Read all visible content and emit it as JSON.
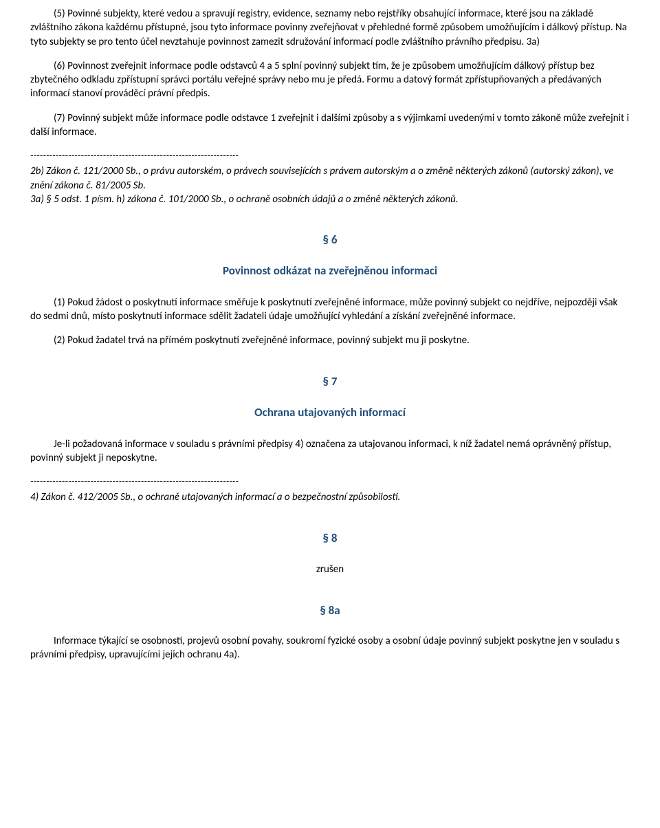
{
  "colors": {
    "heading": "#1f4e79",
    "text": "#000000",
    "background": "#ffffff"
  },
  "typography": {
    "body_fontsize": 15,
    "heading_fontsize": 17,
    "font_family": "Calibri"
  },
  "p5": "(5) Povinné subjekty, které vedou a spravují registry, evidence, seznamy nebo rejstříky obsahující informace, které jsou na základě zvláštního zákona každému přístupné, jsou tyto informace povinny zveřejňovat v přehledné formě způsobem umožňujícím i dálkový přístup. Na tyto subjekty se pro tento účel nevztahuje povinnost zamezit sdružování informací podle zvláštního právního předpisu. 3a)",
  "p6": "(6) Povinnost zveřejnit informace podle odstavců 4 a 5 splní povinný subjekt tím, že je způsobem umožňujícím dálkový přístup bez zbytečného odkladu zpřístupní správci portálu veřejné správy nebo mu je předá. Formu a datový formát zpřístupňovaných a předávaných informací stanoví prováděcí právní předpis.",
  "p7": "(7) Povinný subjekt může informace podle odstavce 1 zveřejnit i dalšími způsoby a s výjimkami uvedenými v tomto zákoně může zveřejnit i další informace.",
  "divider1": "------------------------------------------------------------------",
  "fn2b": "2b) Zákon č. 121/2000 Sb., o právu autorském, o právech souvisejících s právem autorským a o změně některých zákonů (autorský zákon), ve znění zákona č. 81/2005 Sb.",
  "fn3a": "3a) § 5 odst. 1 písm. h) zákona č. 101/2000 Sb., o ochraně osobních údajů a o změně některých zákonů.",
  "s6": {
    "num": "§ 6",
    "title": "Povinnost odkázat na zveřejněnou informaci",
    "p1": "(1) Pokud žádost o poskytnutí informace směřuje k poskytnutí zveřejněné informace, může povinný subjekt co nejdříve, nejpozději však do sedmi dnů, místo poskytnutí informace sdělit žadateli údaje umožňující vyhledání a získání zveřejněné informace.",
    "p2": "(2) Pokud žadatel trvá na přímém poskytnutí zveřejněné informace, povinný subjekt mu ji poskytne."
  },
  "s7": {
    "num": "§ 7",
    "title": "Ochrana utajovaných informací",
    "p1": "Je-li požadovaná informace v souladu s právními předpisy 4) označena za utajovanou informaci, k níž žadatel nemá oprávněný přístup, povinný subjekt ji neposkytne."
  },
  "divider2": "------------------------------------------------------------------",
  "fn4": "4) Zákon č. 412/2005 Sb., o ochraně utajovaných informací a o bezpečnostní způsobilosti.",
  "s8": {
    "num": "§ 8",
    "body": "zrušen"
  },
  "s8a": {
    "num": "§ 8a",
    "p1": "Informace týkající se osobnosti, projevů osobní povahy, soukromí fyzické osoby a osobní údaje povinný subjekt poskytne jen v souladu s právními předpisy, upravujícími jejich ochranu 4a)."
  }
}
